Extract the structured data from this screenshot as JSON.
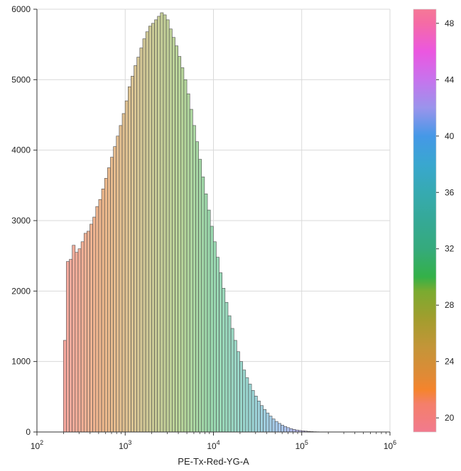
{
  "chart_data": {
    "type": "bar",
    "subtype": "histogram",
    "xlabel": "PE-Tx-Red-YG-A",
    "ylabel": "",
    "xscale": "log",
    "xlim": [
      100,
      1000000
    ],
    "ylim": [
      0,
      6000
    ],
    "grid": true,
    "x_ticks": [
      {
        "value": 100,
        "mantissa": "10",
        "exponent": "2"
      },
      {
        "value": 1000,
        "mantissa": "10",
        "exponent": "3"
      },
      {
        "value": 10000,
        "mantissa": "10",
        "exponent": "4"
      },
      {
        "value": 100000,
        "mantissa": "10",
        "exponent": "5"
      },
      {
        "value": 1000000,
        "mantissa": "10",
        "exponent": "6"
      }
    ],
    "y_ticks": [
      {
        "value": 0,
        "label": "0"
      },
      {
        "value": 1000,
        "label": "1000"
      },
      {
        "value": 2000,
        "label": "2000"
      },
      {
        "value": 3000,
        "label": "3000"
      },
      {
        "value": 4000,
        "label": "4000"
      },
      {
        "value": 5000,
        "label": "5000"
      },
      {
        "value": 6000,
        "label": "6000"
      }
    ],
    "bin_log10_start": 2.3,
    "bin_log10_width": 0.0333,
    "counts": [
      1300,
      2420,
      2450,
      2650,
      2550,
      2600,
      2700,
      2820,
      2850,
      2950,
      3050,
      3200,
      3300,
      3450,
      3600,
      3750,
      3900,
      4050,
      4200,
      4350,
      4520,
      4700,
      4900,
      5050,
      5200,
      5320,
      5450,
      5580,
      5680,
      5760,
      5800,
      5850,
      5900,
      5950,
      5920,
      5850,
      5720,
      5600,
      5480,
      5330,
      5170,
      5000,
      4800,
      4580,
      4350,
      4120,
      3870,
      3620,
      3380,
      3150,
      2920,
      2700,
      2480,
      2260,
      2040,
      1840,
      1650,
      1470,
      1300,
      1140,
      1000,
      880,
      770,
      680,
      590,
      510,
      440,
      375,
      320,
      270,
      225,
      185,
      150,
      122,
      98,
      78,
      62,
      48,
      37,
      28,
      21,
      16,
      12,
      9,
      6,
      4,
      3,
      2,
      1,
      1,
      0
    ],
    "colormap": {
      "type": "colorbar",
      "range": [
        19,
        49
      ],
      "ticks": [
        {
          "value": 20,
          "label": "20"
        },
        {
          "value": 24,
          "label": "24"
        },
        {
          "value": 28,
          "label": "28"
        },
        {
          "value": 32,
          "label": "32"
        },
        {
          "value": 36,
          "label": "36"
        },
        {
          "value": 40,
          "label": "40"
        },
        {
          "value": 44,
          "label": "44"
        },
        {
          "value": 48,
          "label": "48"
        }
      ],
      "stops": [
        {
          "value": 19,
          "color": "#f27a8e"
        },
        {
          "value": 21,
          "color": "#f47f6a"
        },
        {
          "value": 22,
          "color": "#f5842c"
        },
        {
          "value": 23,
          "color": "#e08a36"
        },
        {
          "value": 25,
          "color": "#c49538"
        },
        {
          "value": 27,
          "color": "#a39d2e"
        },
        {
          "value": 29,
          "color": "#7aab30"
        },
        {
          "value": 30,
          "color": "#34b148"
        },
        {
          "value": 32,
          "color": "#35aa7c"
        },
        {
          "value": 34,
          "color": "#35a996"
        },
        {
          "value": 36,
          "color": "#36aab1"
        },
        {
          "value": 38,
          "color": "#39a7cf"
        },
        {
          "value": 40,
          "color": "#4598e7"
        },
        {
          "value": 42,
          "color": "#9a94ec"
        },
        {
          "value": 44,
          "color": "#c773ed"
        },
        {
          "value": 46,
          "color": "#eb57e0"
        },
        {
          "value": 48,
          "color": "#f56ba5"
        },
        {
          "value": 49,
          "color": "#f57896"
        }
      ]
    },
    "bar_gradient": [
      {
        "t": 0.0,
        "color": "#f6a8a0"
      },
      {
        "t": 0.15,
        "color": "#eeb88c"
      },
      {
        "t": 0.3,
        "color": "#d2c896"
      },
      {
        "t": 0.45,
        "color": "#b5d59a"
      },
      {
        "t": 0.55,
        "color": "#9ad9ae"
      },
      {
        "t": 0.7,
        "color": "#9ad5d3"
      },
      {
        "t": 0.82,
        "color": "#a9c6ee"
      },
      {
        "t": 0.92,
        "color": "#cdb5f2"
      },
      {
        "t": 1.0,
        "color": "#f3a7d8"
      }
    ]
  }
}
